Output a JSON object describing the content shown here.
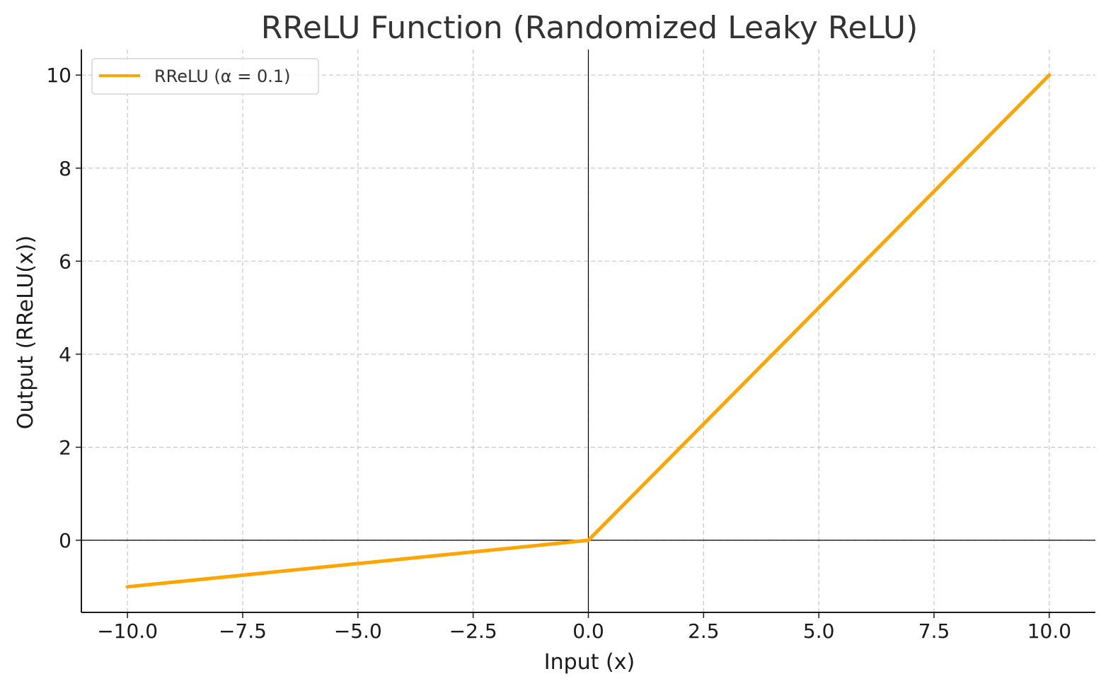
{
  "chart_data": {
    "type": "line",
    "title": "RReLU Function (Randomized Leaky ReLU)",
    "xlabel": "Input (x)",
    "ylabel": "Output (RReLU(x))",
    "xlim": [
      -11,
      11
    ],
    "ylim": [
      -1.55,
      10.55
    ],
    "x_ticks": [
      -10.0,
      -7.5,
      -5.0,
      -2.5,
      0.0,
      2.5,
      5.0,
      7.5,
      10.0
    ],
    "x_tick_labels": [
      "−10.0",
      "−7.5",
      "−5.0",
      "−2.5",
      "0.0",
      "2.5",
      "5.0",
      "7.5",
      "10.0"
    ],
    "y_ticks": [
      0,
      2,
      4,
      6,
      8,
      10
    ],
    "y_tick_labels": [
      "0",
      "2",
      "4",
      "6",
      "8",
      "10"
    ],
    "grid": true,
    "zero_lines": true,
    "legend_position": "top-left",
    "series": [
      {
        "name": "RReLU (α = 0.1)",
        "color": "#FFA500",
        "x": [
          -10,
          0,
          10
        ],
        "y": [
          -1,
          0,
          10
        ]
      }
    ]
  }
}
